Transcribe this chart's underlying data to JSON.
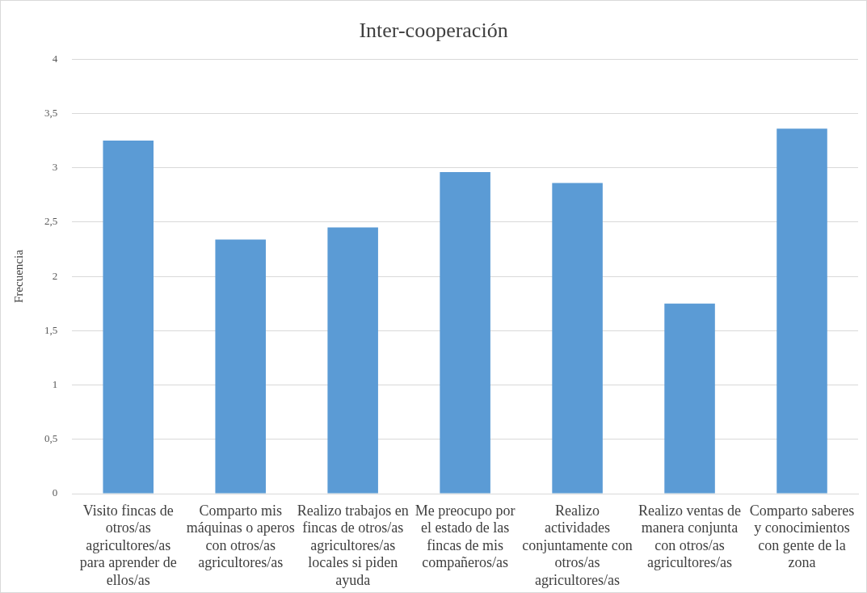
{
  "chart_data": {
    "type": "bar",
    "title": "Inter-cooperación",
    "ylabel": "Frecuencia",
    "categories": [
      "Visito fincas de otros/as agricultores/as para aprender de ellos/as",
      "Comparto mis máquinas o aperos con otros/as agricultores/as",
      "Realizo trabajos en fincas de otros/as agricultores/as locales si piden ayuda",
      "Me preocupo por el estado de las fincas de mis compañeros/as",
      "Realizo actividades conjuntamente con otros/as agricultores/as",
      "Realizo ventas de manera conjunta con otros/as agricultores/as",
      "Comparto saberes y conocimientos con gente de la zona"
    ],
    "values": [
      3.25,
      2.34,
      2.45,
      2.96,
      2.86,
      1.75,
      3.36
    ],
    "color": "#5b9bd5",
    "ylim": [
      0,
      4
    ],
    "yticks": [
      0,
      {
        "value": 0.5,
        "label": "0,5"
      },
      1,
      {
        "value": 1.5,
        "label": "1,5"
      },
      2,
      {
        "value": 2.5,
        "label": "2,5"
      },
      3,
      {
        "value": 3.5,
        "label": "3,5"
      },
      4
    ],
    "grid": "y",
    "legend": false
  }
}
